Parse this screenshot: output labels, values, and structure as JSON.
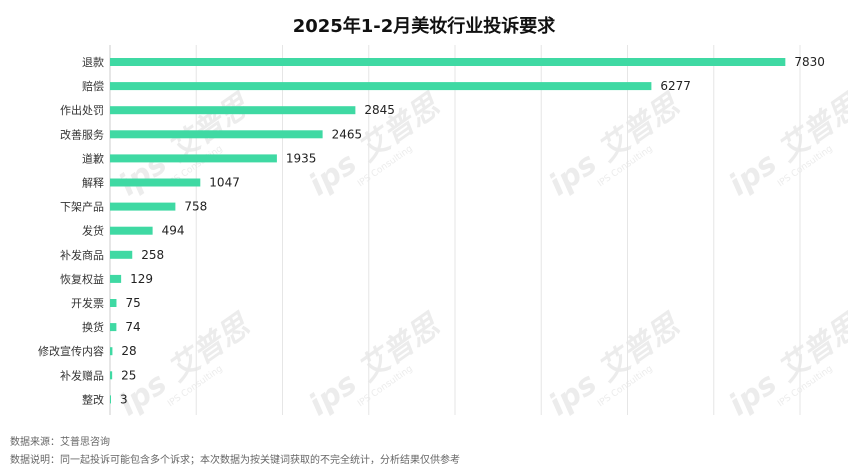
{
  "watermark": {
    "brand": "ips 艾普思",
    "sub": "IPS Consulting"
  },
  "footnotes": {
    "source": "数据来源：艾普思咨询",
    "note": "数据说明：同一起投诉可能包含多个诉求；本次数据为按关键词获取的不完全统计，分析结果仅供参考"
  },
  "colors": {
    "bar": "#3fd9a3",
    "grid": "#e6e6e6",
    "text": "#333333"
  },
  "chart_data": {
    "type": "bar",
    "orientation": "horizontal",
    "title": "2025年1-2月美妆行业投诉要求",
    "xlabel": "",
    "ylabel": "",
    "xlim": [
      0,
      8000
    ],
    "grid": true,
    "legend": "none",
    "categories": [
      "退款",
      "赔偿",
      "作出处罚",
      "改善服务",
      "道歉",
      "解释",
      "下架产品",
      "发货",
      "补发商品",
      "恢复权益",
      "开发票",
      "换货",
      "修改宣传内容",
      "补发赠品",
      "整改"
    ],
    "values": [
      7830,
      6277,
      2845,
      2465,
      1935,
      1047,
      758,
      494,
      258,
      129,
      75,
      74,
      28,
      25,
      3
    ],
    "data_labels": [
      "7830",
      "6277",
      "2845",
      "2465",
      "1935",
      "1047",
      "758",
      "494",
      "258",
      "129",
      "75",
      "74",
      "28",
      "25",
      "3"
    ]
  }
}
